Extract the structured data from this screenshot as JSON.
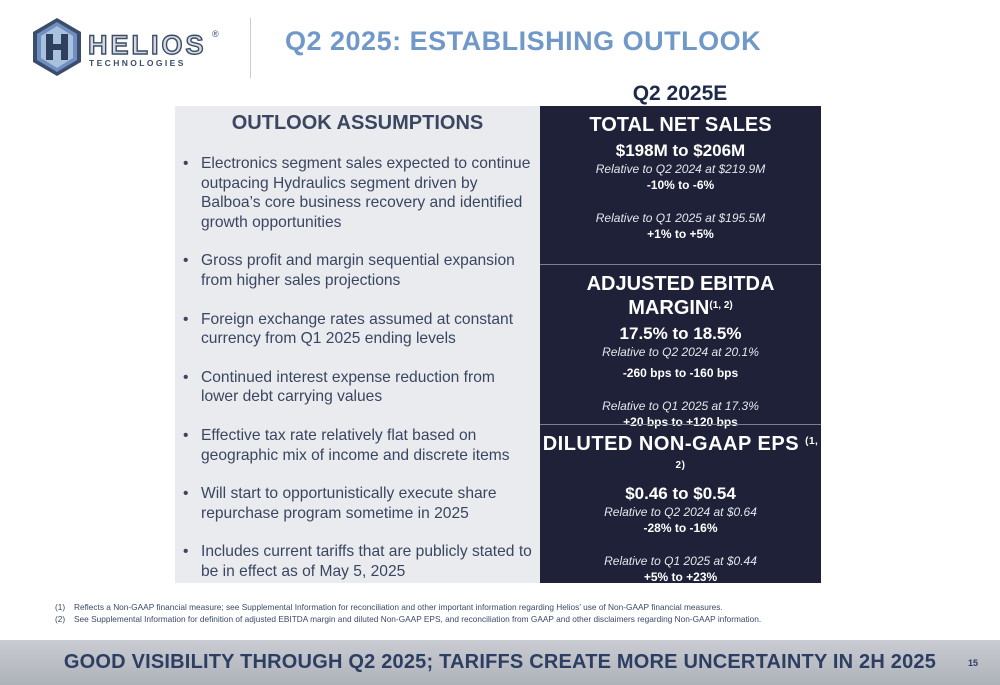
{
  "header": {
    "logo": {
      "wordmark": "HELIOS",
      "registered": "®",
      "subtitle": "TECHNOLOGIES"
    },
    "title": "Q2 2025: ESTABLISHING OUTLOOK"
  },
  "column_header": "Q2 2025E",
  "assumptions": {
    "title": "OUTLOOK ASSUMPTIONS",
    "bullet_glyph": "•",
    "items": [
      "Electronics segment sales expected to continue outpacing Hydraulics segment driven by Balboa’s core business recovery and identified growth opportunities",
      "Gross profit and margin sequential expansion from higher sales projections",
      "Foreign exchange rates assumed at constant currency from Q1 2025 ending levels",
      "Continued interest expense reduction from lower debt carrying values",
      "Effective tax rate relatively flat based on geographic mix of income and discrete items",
      "Will start to opportunistically execute share repurchase program sometime in 2025",
      "Includes current tariffs that are publicly stated to be in effect as of May 5, 2025"
    ]
  },
  "outlook": [
    {
      "title": "TOTAL NET SALES",
      "footnote_ref": "",
      "range": "$198M to $206M",
      "comparisons": [
        {
          "note": "Relative to Q2 2024 at $219.9M",
          "delta": "-10% to -6%"
        },
        {
          "note": "Relative to Q1 2025 at $195.5M",
          "delta": "+1%  to +5%"
        }
      ]
    },
    {
      "title": "ADJUSTED EBITDA MARGIN",
      "footnote_ref": "(1, 2)",
      "range": "17.5% to 18.5%",
      "comparisons": [
        {
          "note": "Relative to Q2 2024 at 20.1%",
          "delta": "-260 bps to -160 bps"
        },
        {
          "note": "Relative to Q1 2025 at 17.3%",
          "delta": "+20 bps to +120 bps"
        }
      ]
    },
    {
      "title": "DILUTED NON-GAAP EPS",
      "footnote_ref": "(1, 2)",
      "range": "$0.46 to $0.54",
      "comparisons": [
        {
          "note": "Relative to Q2 2024 at $0.64",
          "delta": "-28% to -16%"
        },
        {
          "note": "Relative to Q1 2025 at $0.44",
          "delta": "+5% to +23%"
        }
      ]
    }
  ],
  "footnotes": [
    {
      "num": "(1)",
      "text": "Reflects a Non-GAAP financial measure; see Supplemental Information for reconciliation and other important information regarding Helios’ use of Non-GAAP financial measures."
    },
    {
      "num": "(2)",
      "text": "See Supplemental Information for definition of adjusted EBITDA margin and diluted Non-GAAP EPS, and reconciliation from GAAP and other disclaimers regarding Non-GAAP information."
    }
  ],
  "footer": {
    "tagline": "GOOD VISIBILITY THROUGH Q2 2025; TARIFFS CREATE MORE UNCERTAINTY IN 2H 2025",
    "page_number": "15"
  },
  "colors": {
    "title_blue": "#7098c8",
    "navy_panel": "#1e2137",
    "gray_panel": "#e9ebee",
    "footer_text": "#2d3e63"
  }
}
